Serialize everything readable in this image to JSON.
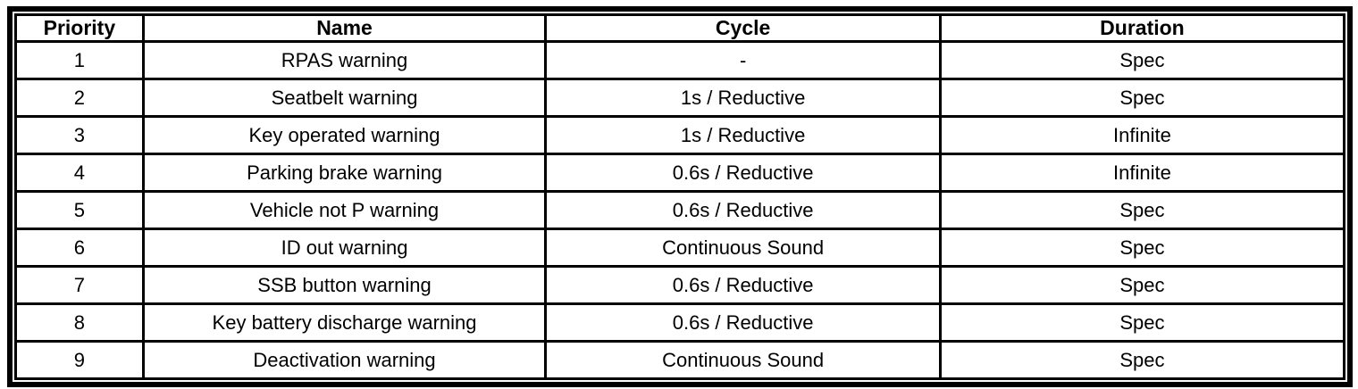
{
  "colors": {
    "border": "#000000",
    "background": "#ffffff",
    "text": "#000000"
  },
  "table": {
    "columns": [
      "Priority",
      "Name",
      "Cycle",
      "Duration"
    ],
    "rows": [
      [
        "1",
        "RPAS warning",
        "-",
        "Spec"
      ],
      [
        "2",
        "Seatbelt warning",
        "1s / Reductive",
        "Spec"
      ],
      [
        "3",
        "Key operated warning",
        "1s / Reductive",
        "Infinite"
      ],
      [
        "4",
        "Parking brake warning",
        "0.6s / Reductive",
        "Infinite"
      ],
      [
        "5",
        "Vehicle not P warning",
        "0.6s / Reductive",
        "Spec"
      ],
      [
        "6",
        "ID out warning",
        "Continuous Sound",
        "Spec"
      ],
      [
        "7",
        "SSB button warning",
        "0.6s / Reductive",
        "Spec"
      ],
      [
        "8",
        "Key battery discharge warning",
        "0.6s / Reductive",
        "Spec"
      ],
      [
        "9",
        "Deactivation warning",
        "Continuous Sound",
        "Spec"
      ]
    ]
  }
}
